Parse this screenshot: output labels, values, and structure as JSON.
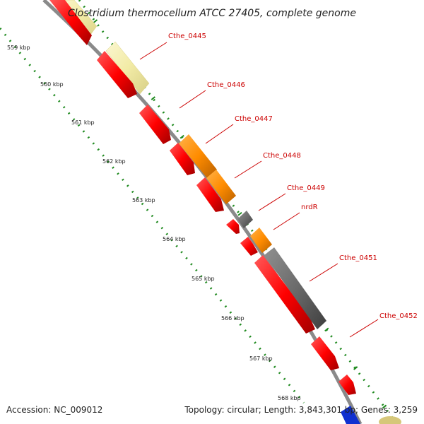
{
  "header": {
    "title": "Clostridium thermocellum ATCC 27405, complete genome"
  },
  "footer": {
    "accession": "Accession: NC_009012",
    "summary": "Topology: circular; Length: 3,843,301 bp; Genes: 3,259"
  },
  "scale": {
    "ticks": [
      "559 kbp",
      "560 kbp",
      "561 kbp",
      "562 kbp",
      "563 kbp",
      "564 kbp",
      "565 kbp",
      "566 kbp",
      "567 kbp",
      "568 kbp"
    ]
  },
  "colors": {
    "cds": "#ff0000",
    "cog_orange": "#ff8c00",
    "cog_gray": "#6b6b6b",
    "cog_pale": "#f2eba6",
    "backbone": "#8a8a8a",
    "tick": "#1f8a1f",
    "label": "#cc0000"
  },
  "genes": [
    {
      "label": "Cthe_0445"
    },
    {
      "label": "Cthe_0446"
    },
    {
      "label": "Cthe_0447"
    },
    {
      "label": "Cthe_0448"
    },
    {
      "label": "Cthe_0449"
    },
    {
      "label": "nrdR"
    },
    {
      "label": "Cthe_0451"
    },
    {
      "label": "Cthe_0452"
    }
  ]
}
